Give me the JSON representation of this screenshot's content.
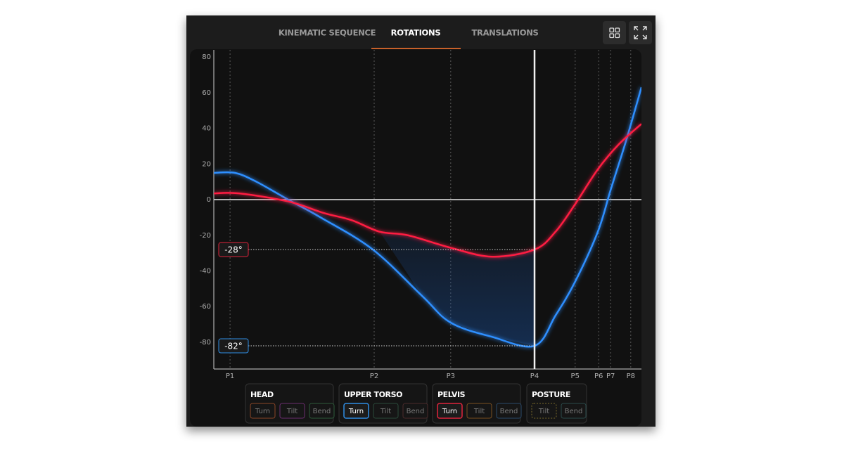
{
  "tabs": [
    "KINEMATIC SEQUENCE",
    "ROTATIONS",
    "TRANSLATIONS"
  ],
  "active_tab": 1,
  "chart_data": {
    "type": "line",
    "xlim": [
      0,
      100
    ],
    "xticks": [
      {
        "value": 3.8,
        "label": "P1"
      },
      {
        "value": 37.5,
        "label": "P2"
      },
      {
        "value": 55.4,
        "label": "P3"
      },
      {
        "value": 75,
        "label": "P4"
      },
      {
        "value": 84.5,
        "label": "P5"
      },
      {
        "value": 90,
        "label": "P6"
      },
      {
        "value": 92.8,
        "label": "P7"
      },
      {
        "value": 97.5,
        "label": "P8"
      }
    ],
    "ylim": [
      -95,
      84
    ],
    "yticks": [
      80,
      60,
      40,
      20,
      0,
      -20,
      -40,
      -60,
      -80
    ],
    "series": [
      {
        "color": "#2f8fff",
        "x": [
          0,
          5,
          10,
          17.4,
          25,
          37.2,
          48.7,
          55.4,
          65.1,
          75,
          79.9,
          84.5,
          89.8,
          92.8,
          96.4,
          100
        ],
        "values": [
          15,
          15,
          10,
          0,
          -10,
          -28,
          -54,
          -69,
          -77,
          -82,
          -65,
          -46,
          -18,
          5.5,
          33,
          63
        ]
      },
      {
        "color": "#ff1f43",
        "x": [
          0,
          5.9,
          17.4,
          25.7,
          32.2,
          38.8,
          45.4,
          55.4,
          65.1,
          75,
          79.9,
          84.5,
          89.8,
          94.7,
          100
        ],
        "values": [
          3.5,
          3.5,
          -1,
          -7.5,
          -11.5,
          -18,
          -20,
          -27,
          -32,
          -28,
          -18,
          -2.5,
          17,
          31,
          42.5
        ]
      }
    ],
    "cursor_x": 75,
    "markers": [
      {
        "value": -28,
        "label": "-28°",
        "color": "#e0243c"
      },
      {
        "value": -82,
        "label": "-82°",
        "color": "#2f8de4"
      }
    ]
  },
  "controls": [
    {
      "title": "HEAD",
      "buttons": [
        {
          "label": "Turn",
          "color": "#8a4526",
          "active": false
        },
        {
          "label": "Tilt",
          "color": "#6a2d6e",
          "active": false
        },
        {
          "label": "Bend",
          "color": "#2d5a3a",
          "active": false
        }
      ]
    },
    {
      "title": "UPPER TORSO",
      "buttons": [
        {
          "label": "Turn",
          "color": "#2f8de4",
          "active": true
        },
        {
          "label": "Tilt",
          "color": "#2a4a3a",
          "active": false
        },
        {
          "label": "Bend",
          "color": "#4a2a2a",
          "active": false
        }
      ]
    },
    {
      "title": "PELVIS",
      "buttons": [
        {
          "label": "Turn",
          "color": "#e0243c",
          "active": true
        },
        {
          "label": "Tilt",
          "color": "#7a5020",
          "active": false
        },
        {
          "label": "Bend",
          "color": "#2a4a6a",
          "active": false
        }
      ]
    },
    {
      "title": "POSTURE",
      "buttons": [
        {
          "label": "Tilt",
          "color": "#7a6a2a",
          "active": false
        },
        {
          "label": "Bend",
          "color": "#2a4a4a",
          "active": false
        }
      ]
    }
  ]
}
